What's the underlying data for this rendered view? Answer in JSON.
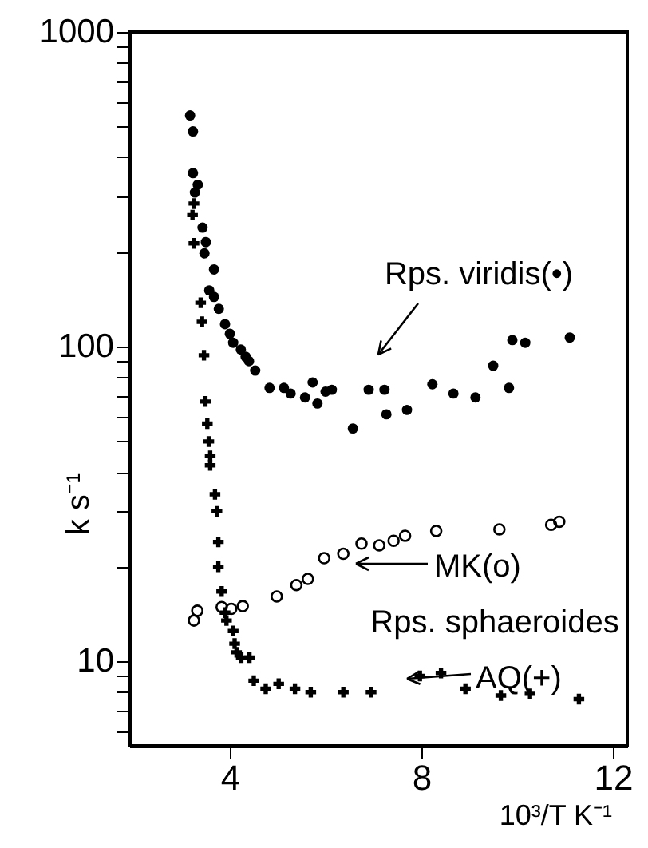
{
  "chart_data": {
    "type": "scatter",
    "xlabel": "10³/T K⁻¹",
    "ylabel": "k s⁻¹",
    "xlim": [
      1.9,
      12.3
    ],
    "xticks": [
      4,
      8,
      12
    ],
    "ylim": [
      5.4,
      1000
    ],
    "log": true,
    "yticks": [
      {
        "value": 6,
        "label": null
      },
      {
        "value": 7,
        "label": null
      },
      {
        "value": 8,
        "label": null
      },
      {
        "value": 9,
        "label": null
      },
      10,
      {
        "value": 20,
        "label": null
      },
      {
        "value": 30,
        "label": null
      },
      {
        "value": 40,
        "label": null
      },
      {
        "value": 50,
        "label": null
      },
      {
        "value": 60,
        "label": null
      },
      {
        "value": 70,
        "label": null
      },
      {
        "value": 80,
        "label": null
      },
      {
        "value": 90,
        "label": null
      },
      100,
      {
        "value": 200,
        "label": null
      },
      {
        "value": 300,
        "label": null
      },
      {
        "value": 400,
        "label": null
      },
      {
        "value": 500,
        "label": null
      },
      {
        "value": 600,
        "label": null
      },
      {
        "value": 700,
        "label": null
      },
      {
        "value": 800,
        "label": null
      },
      {
        "value": 900,
        "label": null
      },
      1000
    ],
    "grid": false,
    "series": [
      {
        "color": "#000000",
        "marker": "circle",
        "x": [
          3.17,
          3.23,
          3.23,
          3.33,
          3.27,
          3.43,
          3.5,
          3.47,
          3.67,
          3.57,
          3.67,
          3.77,
          3.9,
          4.0,
          4.07,
          4.23,
          4.33,
          4.4,
          4.53,
          4.83,
          5.13,
          5.27,
          5.57,
          5.73,
          5.83,
          6.0,
          6.13,
          6.57,
          6.9,
          7.23,
          7.27,
          7.7,
          8.23,
          8.67,
          9.13,
          9.5,
          9.83,
          9.9,
          10.17,
          11.1
        ],
        "values": [
          543,
          483,
          356,
          327,
          309,
          239,
          215,
          198,
          176,
          151,
          144,
          132,
          118,
          110,
          103,
          98,
          93,
          90,
          84,
          74,
          74,
          71,
          69,
          77,
          66,
          72,
          73,
          55,
          73,
          73,
          61,
          63,
          76,
          71,
          69,
          87,
          74,
          105,
          103,
          107
        ]
      },
      {
        "color": "#000000",
        "marker": "circle",
        "x": [
          3.25,
          3.32,
          3.83,
          4.03,
          4.27,
          4.98,
          5.39,
          5.63,
          5.97,
          6.37,
          6.75,
          7.12,
          7.42,
          7.66,
          8.31,
          9.63,
          10.71,
          10.88
        ],
        "values": [
          13.5,
          14.5,
          14.9,
          14.7,
          15.0,
          16.1,
          17.5,
          18.3,
          21.3,
          22,
          23.7,
          23.4,
          24.2,
          25.1,
          26,
          26.3,
          27.2,
          27.8
        ]
      },
      {
        "color": "#000000",
        "marker": "cross",
        "x": [
          3.25,
          3.22,
          3.25,
          3.39,
          3.42,
          3.46,
          3.49,
          3.53,
          3.56,
          3.59,
          3.59,
          3.69,
          3.73,
          3.76,
          3.76,
          3.83,
          3.9,
          3.93,
          4.07,
          4.1,
          4.14,
          4.24,
          4.41,
          4.5,
          4.75,
          5.02,
          5.36,
          5.69,
          6.37,
          6.95,
          7.97,
          8.41,
          8.92,
          9.66,
          10.27,
          11.29
        ],
        "values": [
          285,
          262,
          213,
          138,
          120,
          94,
          67,
          57,
          50,
          45,
          42,
          34,
          30,
          24,
          20,
          16.7,
          14.3,
          13.5,
          12.5,
          11.4,
          10.7,
          10.3,
          10.3,
          8.7,
          8.2,
          8.5,
          8.2,
          8.0,
          8.0,
          8.0,
          9.0,
          9.2,
          8.2,
          7.8,
          7.9,
          7.6
        ]
      }
    ],
    "annotations": [
      "Rps. viridis(•)",
      "MK(o)",
      "Rps. sphaeroides",
      "AQ(+)"
    ]
  }
}
